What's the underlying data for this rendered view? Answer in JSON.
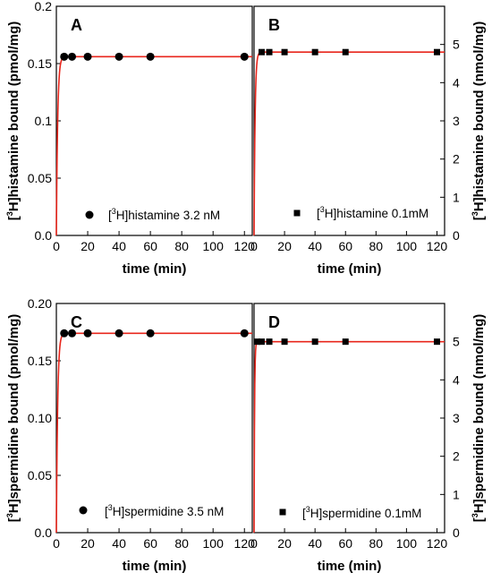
{
  "chart_data": [
    {
      "type": "scatter",
      "panel": "A",
      "xlabel": "time (min)",
      "ylabel_prefix": "[",
      "ylabel_sup": "3",
      "ylabel_suffix": "H]histamine bound (pmol/mg)",
      "ylabel_side": "left",
      "xlim": [
        0,
        125
      ],
      "ylim": [
        0,
        0.2
      ],
      "xticks": [
        0,
        20,
        40,
        60,
        80,
        100,
        120
      ],
      "yticks": [
        "0.0",
        "0.05",
        "0.1",
        "0.15",
        "0.2"
      ],
      "yticks_values": [
        0,
        0.05,
        0.1,
        0.15,
        0.2
      ],
      "marker": "circle",
      "series": [
        {
          "legend_prefix": "[",
          "legend_sup": "3",
          "legend_suffix": "H]histamine 3.2 nM",
          "x": [
            5,
            10,
            20,
            40,
            60,
            120
          ],
          "y": [
            0.156,
            0.156,
            0.156,
            0.156,
            0.156,
            0.156
          ]
        }
      ],
      "fit": {
        "plateau": 0.156,
        "rate": 1.2,
        "color": "#e8261c"
      }
    },
    {
      "type": "scatter",
      "panel": "B",
      "xlabel": "time (min)",
      "ylabel_prefix": "[",
      "ylabel_sup": "3",
      "ylabel_suffix": "H]histamine bound (nmol/mg)",
      "ylabel_side": "right",
      "xlim": [
        0,
        125
      ],
      "ylim": [
        0,
        6
      ],
      "xticks": [
        0,
        20,
        40,
        60,
        80,
        100,
        120
      ],
      "yticks": [
        "0",
        "1",
        "2",
        "3",
        "4",
        "5"
      ],
      "yticks_values": [
        0,
        1,
        2,
        3,
        4,
        5
      ],
      "marker": "square",
      "series": [
        {
          "legend_prefix": "[",
          "legend_sup": "3",
          "legend_suffix": "H]histamine 0.1mM",
          "x": [
            5,
            10,
            20,
            40,
            60,
            120
          ],
          "y": [
            4.8,
            4.8,
            4.8,
            4.8,
            4.8,
            4.8
          ]
        }
      ],
      "fit": {
        "plateau": 4.8,
        "rate": 1.5,
        "color": "#e8261c"
      }
    },
    {
      "type": "scatter",
      "panel": "C",
      "xlabel": "time (min)",
      "ylabel_prefix": "[",
      "ylabel_sup": "3",
      "ylabel_suffix": "H]spermidine bound (pmol/mg)",
      "ylabel_side": "left",
      "xlim": [
        0,
        125
      ],
      "ylim": [
        0,
        0.2
      ],
      "xticks": [
        0,
        20,
        40,
        60,
        80,
        100,
        120
      ],
      "yticks": [
        "0.0",
        "0.05",
        "0.10",
        "0.15",
        "0.20"
      ],
      "yticks_values": [
        0,
        0.05,
        0.1,
        0.15,
        0.2
      ],
      "marker": "circle",
      "series": [
        {
          "legend_prefix": "[",
          "legend_sup": "3",
          "legend_suffix": "H]spermidine 3.5 nM",
          "x": [
            5,
            10,
            20,
            40,
            60,
            120
          ],
          "y": [
            0.174,
            0.174,
            0.174,
            0.174,
            0.174,
            0.174
          ]
        }
      ],
      "fit": {
        "plateau": 0.174,
        "rate": 1.2,
        "color": "#e8261c"
      }
    },
    {
      "type": "scatter",
      "panel": "D",
      "xlabel": "time (min)",
      "ylabel_prefix": "[",
      "ylabel_sup": "3",
      "ylabel_suffix": "H]spermidine bound (nmol/mg)",
      "ylabel_side": "right",
      "xlim": [
        0,
        125
      ],
      "ylim": [
        0,
        6
      ],
      "xticks": [
        0,
        20,
        40,
        60,
        80,
        100,
        120
      ],
      "yticks": [
        "0",
        "1",
        "2",
        "3",
        "4",
        "5"
      ],
      "yticks_values": [
        0,
        1,
        2,
        3,
        4,
        5
      ],
      "marker": "square",
      "series": [
        {
          "legend_prefix": "[",
          "legend_sup": "3",
          "legend_suffix": "H]spermidine 0.1mM",
          "x": [
            2,
            5,
            10,
            20,
            40,
            60,
            120
          ],
          "y": [
            5.0,
            5.0,
            5.0,
            5.0,
            5.0,
            5.0,
            5.0
          ]
        }
      ],
      "fit": {
        "plateau": 5.0,
        "rate": 3.0,
        "color": "#e8261c"
      }
    }
  ]
}
